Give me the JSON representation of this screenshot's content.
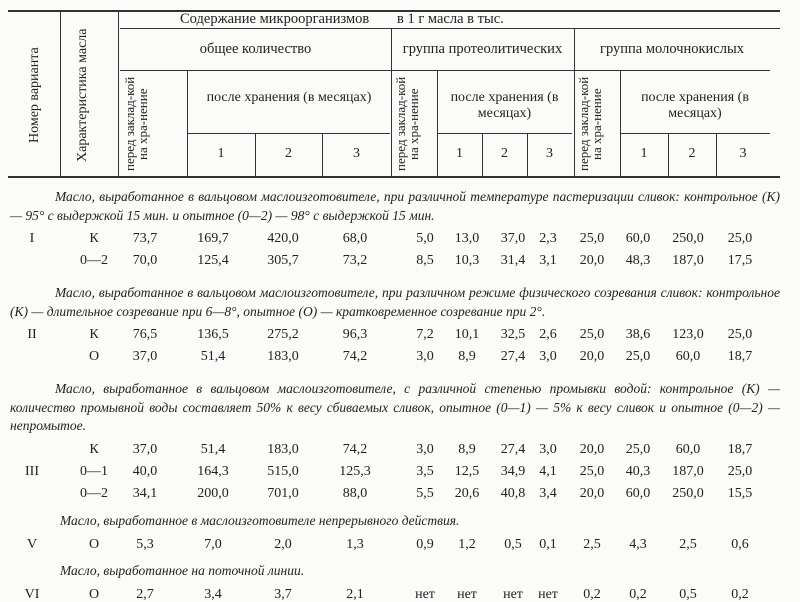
{
  "header": {
    "variant_number": "Номер варианта",
    "characteristic": "Характеристика масла",
    "content_title_left": "Содержание микроорганизмов",
    "content_title_right": "в 1 г масла в тыс.",
    "groups": [
      {
        "label": "общее количество",
        "before": "перед заклад-кой на хра-нение",
        "after": "после хранения (в месяцах)",
        "months": [
          "1",
          "2",
          "3"
        ]
      },
      {
        "label": "группа протеолитических",
        "before": "перед заклад-кой на хра-нение",
        "after": "после хранения (в месяцах)",
        "months": [
          "1",
          "2",
          "3"
        ]
      },
      {
        "label": "группа молочнокислых",
        "before": "перед заклад-кой на хра-нение",
        "after": "после хранения (в месяцах)",
        "months": [
          "1",
          "2",
          "3"
        ]
      }
    ]
  },
  "sections": [
    {
      "caption": "Масло, выработанное в вальцовом маслоизготовителе, при различной температуре пастеризации сливок: контрольное (К) — 95° с выдержкой 15 мин. и опытное (0—2) — 98° с выдержкой 15 мин.",
      "rows": [
        {
          "variant": "I",
          "char": "К",
          "values": [
            "73,7",
            "169,7",
            "420,0",
            "68,0",
            "5,0",
            "13,0",
            "37,0",
            "2,3",
            "25,0",
            "60,0",
            "250,0",
            "25,0"
          ]
        },
        {
          "variant": "",
          "char": "0—2",
          "values": [
            "70,0",
            "125,4",
            "305,7",
            "73,2",
            "8,5",
            "10,3",
            "31,4",
            "3,1",
            "20,0",
            "48,3",
            "187,0",
            "17,5"
          ]
        }
      ]
    },
    {
      "caption": "Масло, выработанное в вальцовом маслоизготовителе, при различном режиме физического созревания сливок: контрольное (К) — длительное созревание при 6—8°, опытное (О) — кратковременное созревание при 2°.",
      "rows": [
        {
          "variant": "II",
          "char": "К",
          "values": [
            "76,5",
            "136,5",
            "275,2",
            "96,3",
            "7,2",
            "10,1",
            "32,5",
            "2,6",
            "25,0",
            "38,6",
            "123,0",
            "25,0"
          ]
        },
        {
          "variant": "",
          "char": "О",
          "values": [
            "37,0",
            "51,4",
            "183,0",
            "74,2",
            "3,0",
            "8,9",
            "27,4",
            "3,0",
            "20,0",
            "25,0",
            "60,0",
            "18,7"
          ]
        }
      ]
    },
    {
      "caption": "Масло, выработанное в вальцовом маслоизготовителе, с различной степенью промывки водой: контрольное (К) — количество промывной воды составляет 50% к весу сбиваемых сливок, опытное (0—1) — 5% к весу сливок и опытное (0—2) — непромытое.",
      "rows": [
        {
          "variant": "",
          "char": "К",
          "values": [
            "37,0",
            "51,4",
            "183,0",
            "74,2",
            "3,0",
            "8,9",
            "27,4",
            "3,0",
            "20,0",
            "25,0",
            "60,0",
            "18,7"
          ]
        },
        {
          "variant": "III",
          "char": "0—1",
          "values": [
            "40,0",
            "164,3",
            "515,0",
            "125,3",
            "3,5",
            "12,5",
            "34,9",
            "4,1",
            "25,0",
            "40,3",
            "187,0",
            "25,0"
          ]
        },
        {
          "variant": "",
          "char": "0—2",
          "values": [
            "34,1",
            "200,0",
            "701,0",
            "88,0",
            "5,5",
            "20,6",
            "40,8",
            "3,4",
            "20,0",
            "60,0",
            "250,0",
            "15,5"
          ]
        }
      ]
    },
    {
      "caption": "Масло, выработанное в маслоизготовителе непрерывного действия.",
      "rows": [
        {
          "variant": "V",
          "char": "О",
          "values": [
            "5,3",
            "7,0",
            "2,0",
            "1,3",
            "0,9",
            "1,2",
            "0,5",
            "0,1",
            "2,5",
            "4,3",
            "2,5",
            "0,6"
          ]
        }
      ]
    },
    {
      "caption": "Масло, выработанное на поточной линии.",
      "rows": [
        {
          "variant": "VI",
          "char": "О",
          "values": [
            "2,7",
            "3,4",
            "3,7",
            "2,1",
            "нет",
            "нет",
            "нет",
            "нет",
            "0,2",
            "0,2",
            "0,5",
            "0,2"
          ]
        }
      ]
    }
  ]
}
